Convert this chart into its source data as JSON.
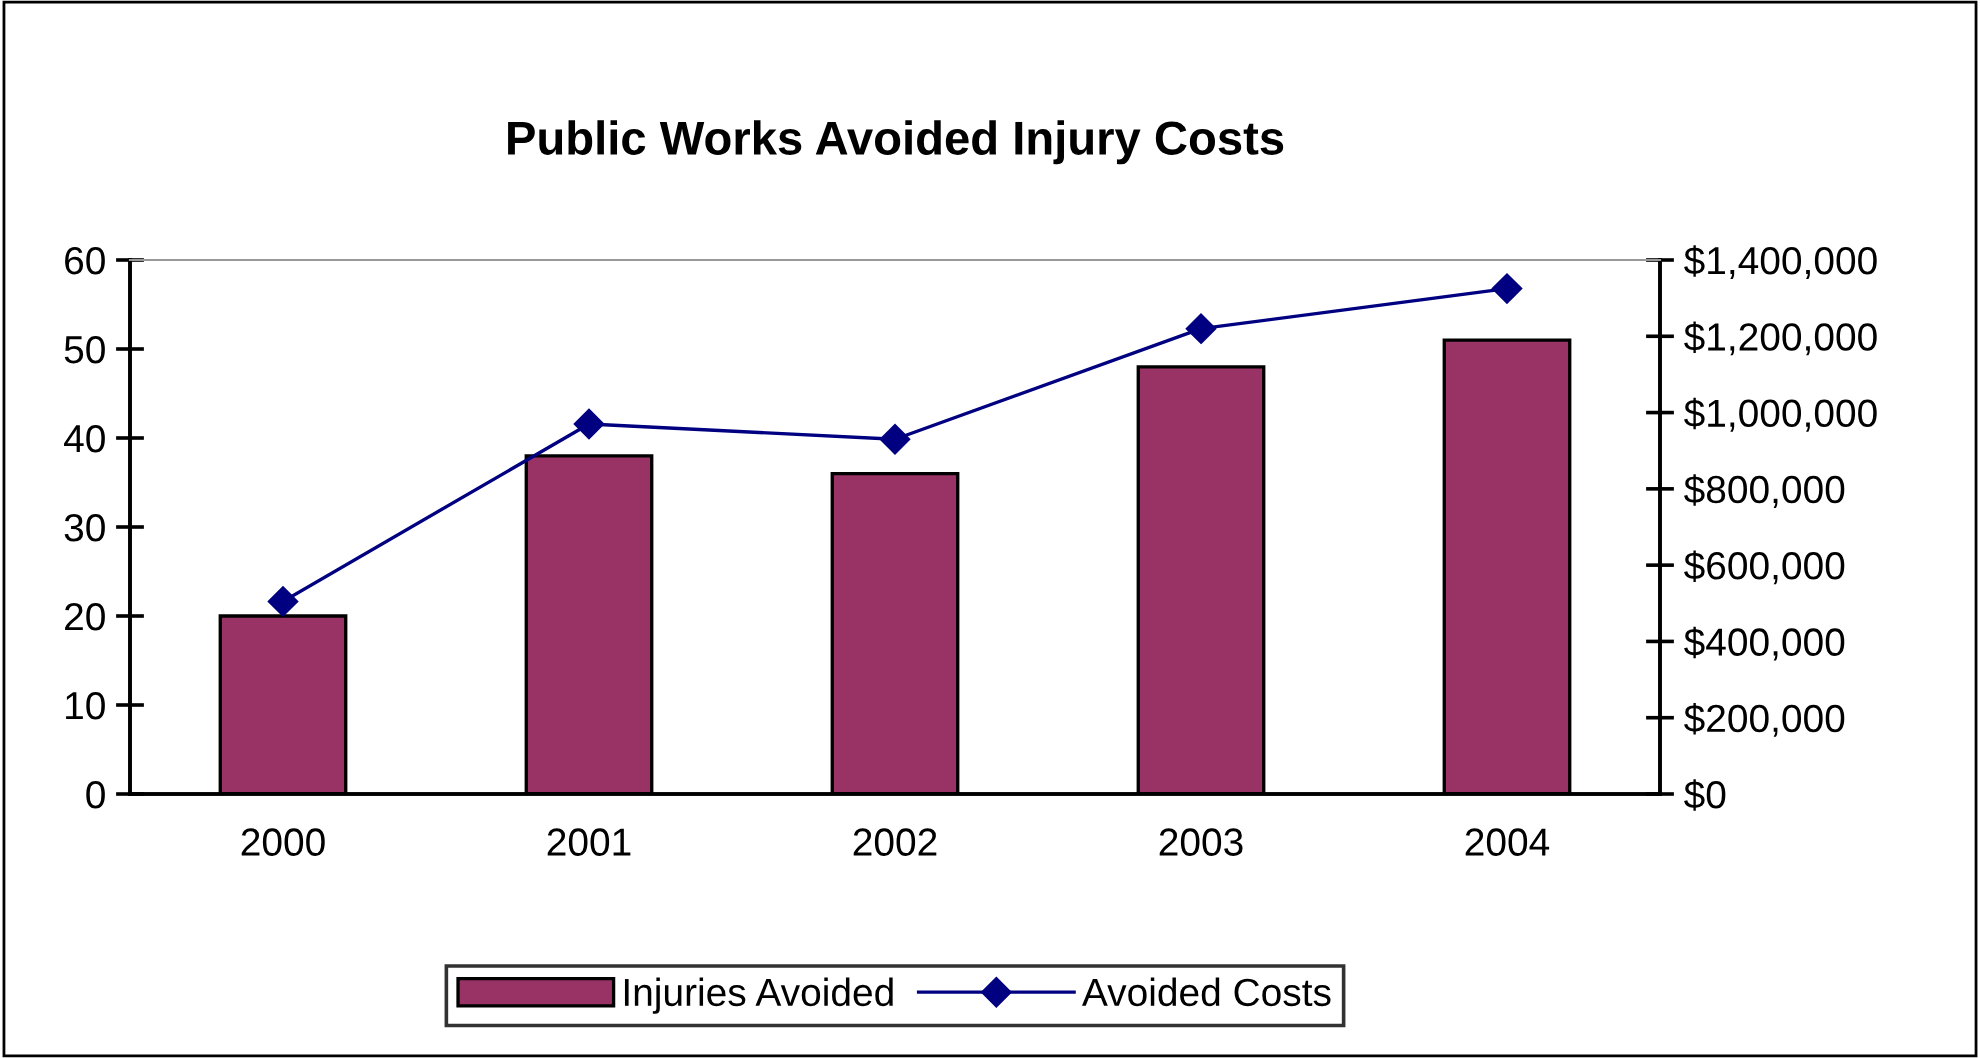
{
  "chart_data": {
    "type": "bar",
    "title": "Public Works Avoided Injury Costs",
    "categories": [
      "2000",
      "2001",
      "2002",
      "2003",
      "2004"
    ],
    "series": [
      {
        "name": "Injuries Avoided",
        "color": "#993366",
        "values": [
          20,
          38,
          36,
          48,
          51
        ]
      },
      {
        "name": "Avoided Costs",
        "type": "line",
        "axis": "y2",
        "color": "#000080",
        "marker": "diamond",
        "values": [
          505000,
          970000,
          930000,
          1220000,
          1325000
        ]
      }
    ],
    "ylim": [
      0,
      60
    ],
    "yticks": [
      0,
      10,
      20,
      30,
      40,
      50,
      60
    ],
    "y2lim": [
      0,
      1400000
    ],
    "y2ticks": [
      {
        "value": 0,
        "label": "$0"
      },
      {
        "value": 200000,
        "label": "$200,000"
      },
      {
        "value": 400000,
        "label": "$400,000"
      },
      {
        "value": 600000,
        "label": "$600,000"
      },
      {
        "value": 800000,
        "label": "$800,000"
      },
      {
        "value": 1000000,
        "label": "$1,000,000"
      },
      {
        "value": 1200000,
        "label": "$1,200,000"
      },
      {
        "value": 1400000,
        "label": "$1,400,000"
      }
    ],
    "grid": false,
    "legend": "bottom"
  }
}
